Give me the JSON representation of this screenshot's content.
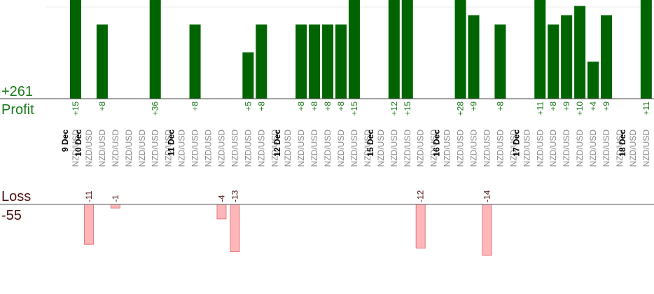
{
  "chart_data": {
    "type": "bar",
    "profit": {
      "label": "Profit",
      "total": "+261",
      "color": "#006400",
      "label_color": "#1a7a1a"
    },
    "loss": {
      "label": "Loss",
      "total": "-55",
      "color": "#ffb6b9",
      "label_color": "#4a1010"
    },
    "symbol": "NZD/USD",
    "trades": [
      {
        "date": "9 Dec",
        "symbol": "NZD/USD",
        "value": 15
      },
      {
        "date": "10 Dec",
        "symbol": "NZD/USD",
        "value": -11
      },
      {
        "date": "",
        "symbol": "NZD/USD",
        "value": 8
      },
      {
        "date": "",
        "symbol": "NZD/USD",
        "value": -1
      },
      {
        "date": "",
        "symbol": "NZD/USD",
        "value": null
      },
      {
        "date": "",
        "symbol": "NZD/USD",
        "value": null
      },
      {
        "date": "",
        "symbol": "NZD/USD",
        "value": 36
      },
      {
        "date": "",
        "symbol": "NZD/USD",
        "value": null
      },
      {
        "date": "11 Dec",
        "symbol": "NZD/USD",
        "value": null
      },
      {
        "date": "",
        "symbol": "NZD/USD",
        "value": 8
      },
      {
        "date": "",
        "symbol": "NZD/USD",
        "value": null
      },
      {
        "date": "",
        "symbol": "NZD/USD",
        "value": -4
      },
      {
        "date": "",
        "symbol": "NZD/USD",
        "value": -13
      },
      {
        "date": "",
        "symbol": "NZD/USD",
        "value": 5
      },
      {
        "date": "",
        "symbol": "NZD/USD",
        "value": 8
      },
      {
        "date": "",
        "symbol": "NZD/USD",
        "value": null
      },
      {
        "date": "12 Dec",
        "symbol": "NZD/USD",
        "value": null
      },
      {
        "date": "",
        "symbol": "NZD/USD",
        "value": 8
      },
      {
        "date": "",
        "symbol": "NZD/USD",
        "value": 8
      },
      {
        "date": "",
        "symbol": "NZD/USD",
        "value": 8
      },
      {
        "date": "",
        "symbol": "NZD/USD",
        "value": 8
      },
      {
        "date": "",
        "symbol": "NZD/USD",
        "value": 15
      },
      {
        "date": "",
        "symbol": "NZD/USD",
        "value": null
      },
      {
        "date": "15 Dec",
        "symbol": "NZD/USD",
        "value": null
      },
      {
        "date": "",
        "symbol": "NZD/USD",
        "value": 12
      },
      {
        "date": "",
        "symbol": "NZD/USD",
        "value": 15
      },
      {
        "date": "",
        "symbol": "NZD/USD",
        "value": -12
      },
      {
        "date": "",
        "symbol": "NZD/USD",
        "value": null
      },
      {
        "date": "16 Dec",
        "symbol": "NZD/USD",
        "value": null
      },
      {
        "date": "",
        "symbol": "NZD/USD",
        "value": 28
      },
      {
        "date": "",
        "symbol": "NZD/USD",
        "value": 9
      },
      {
        "date": "",
        "symbol": "NZD/USD",
        "value": -14
      },
      {
        "date": "",
        "symbol": "NZD/USD",
        "value": 8
      },
      {
        "date": "",
        "symbol": "NZD/USD",
        "value": null
      },
      {
        "date": "17 Dec",
        "symbol": "NZD/USD",
        "value": null
      },
      {
        "date": "",
        "symbol": "NZD/USD",
        "value": 11
      },
      {
        "date": "",
        "symbol": "NZD/USD",
        "value": 8
      },
      {
        "date": "",
        "symbol": "NZD/USD",
        "value": 9
      },
      {
        "date": "",
        "symbol": "NZD/USD",
        "value": 10
      },
      {
        "date": "",
        "symbol": "NZD/USD",
        "value": 4
      },
      {
        "date": "",
        "symbol": "NZD/USD",
        "value": 9
      },
      {
        "date": "",
        "symbol": "NZD/USD",
        "value": null
      },
      {
        "date": "18 Dec",
        "symbol": "NZD/USD",
        "value": null
      },
      {
        "date": "",
        "symbol": "NZD/USD",
        "value": 11
      }
    ]
  }
}
